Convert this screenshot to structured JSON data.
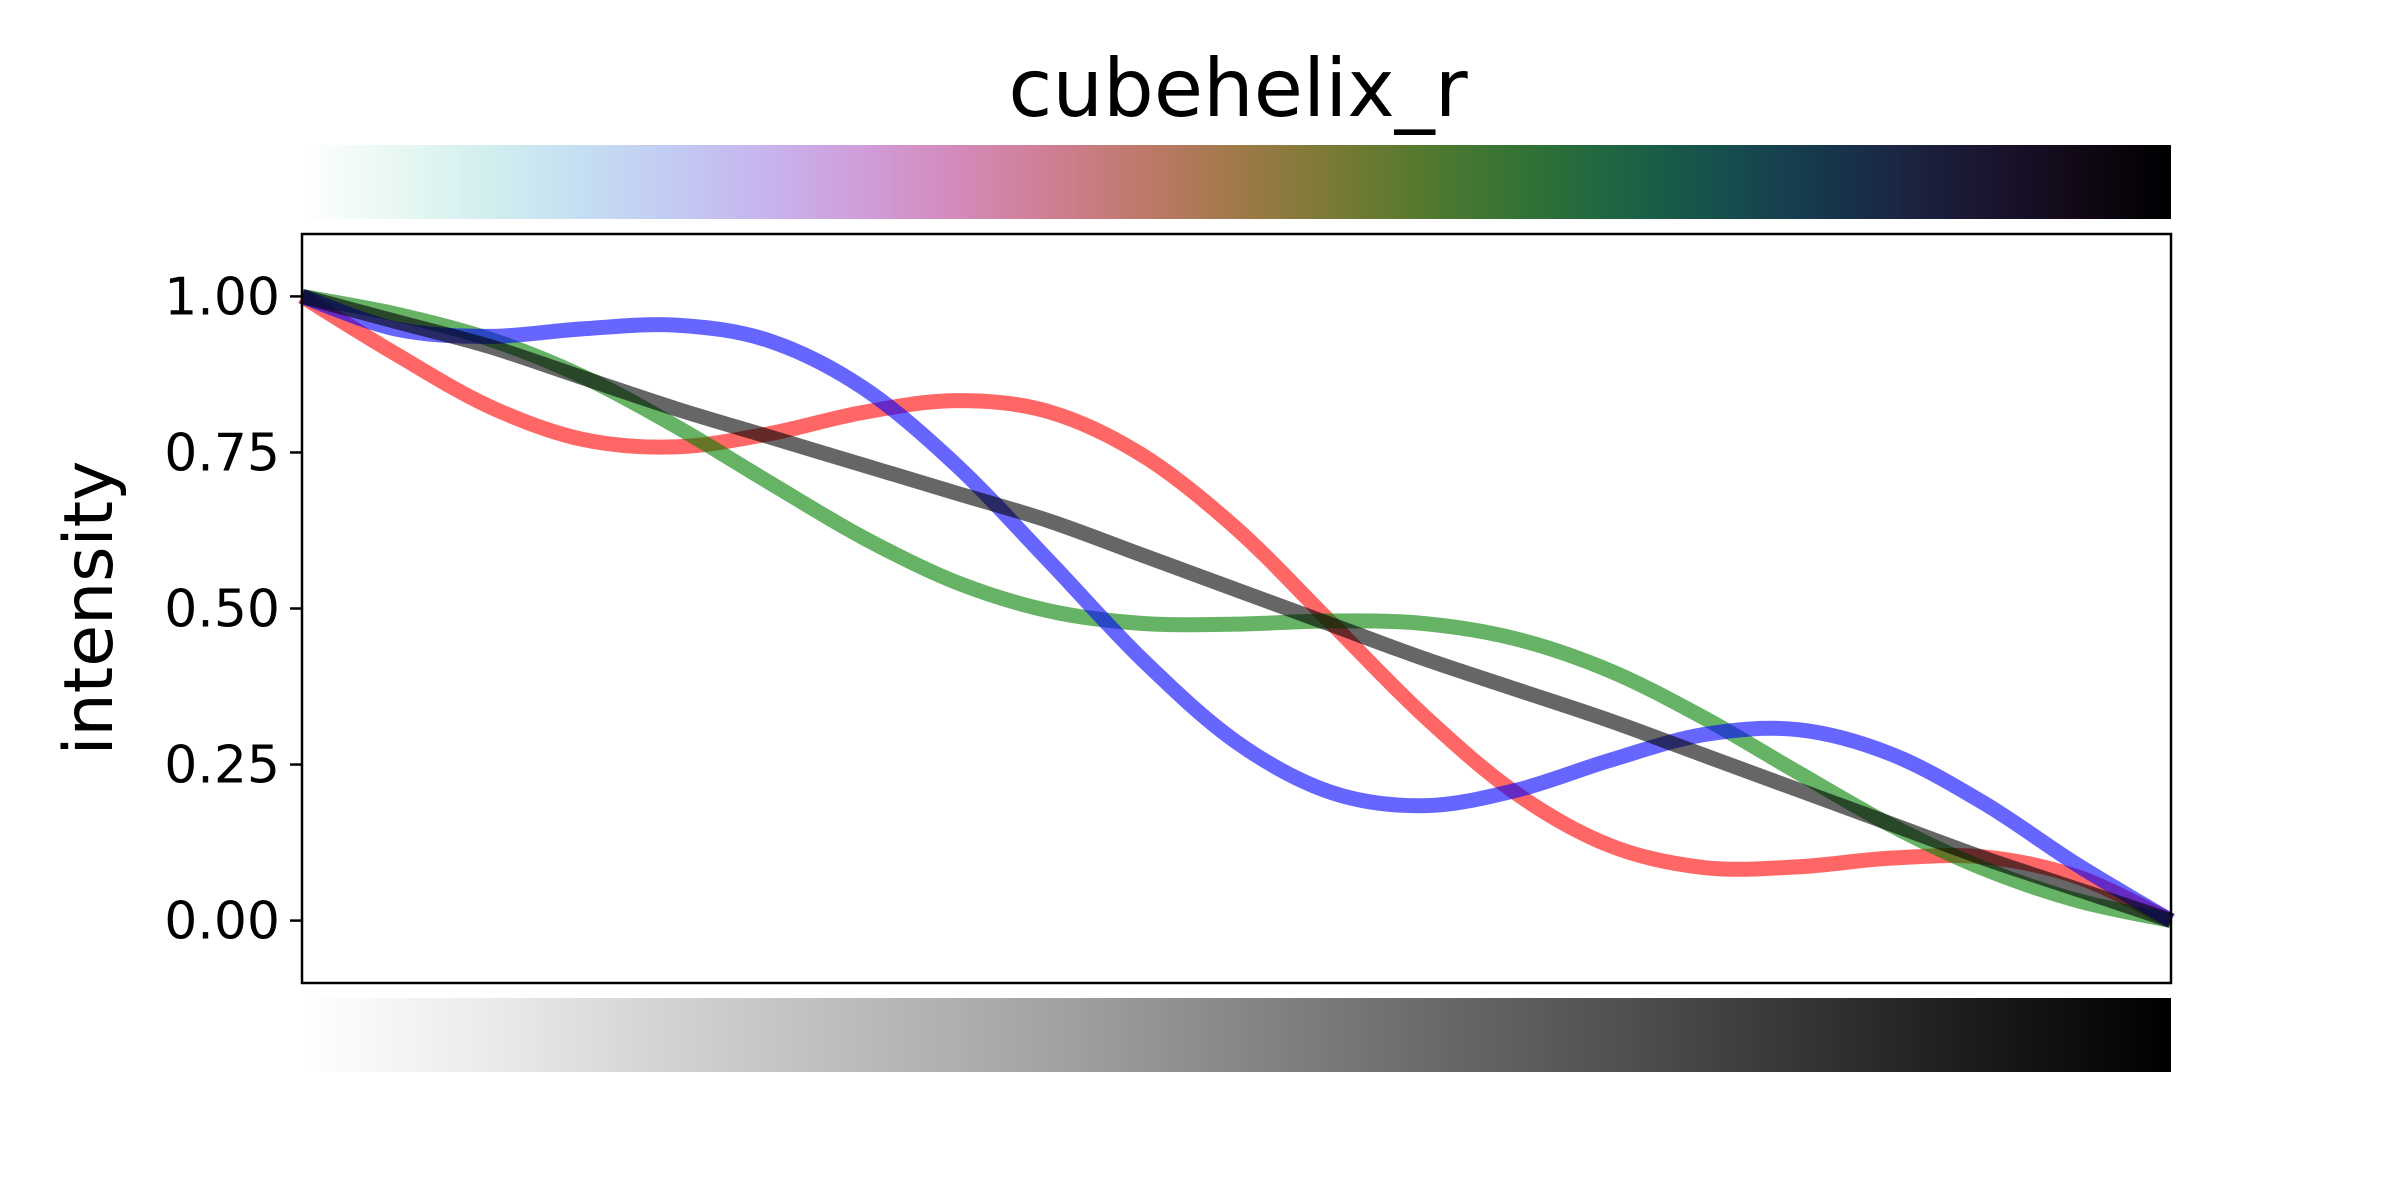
{
  "chart_data": {
    "type": "line",
    "title": "cubehelix_r",
    "xlabel": "",
    "ylabel": "intensity",
    "xlim": [
      0,
      1
    ],
    "ylim": [
      -0.1,
      1.1
    ],
    "x_ticks_shown": false,
    "yticks": [
      0.0,
      0.25,
      0.5,
      0.75,
      1.0
    ],
    "ytick_labels": [
      "0.00",
      "0.25",
      "0.50",
      "0.75",
      "1.00"
    ],
    "grid": false,
    "legend": "none",
    "x": [
      0,
      0.05,
      0.1,
      0.15,
      0.2,
      0.25,
      0.3,
      0.35,
      0.4,
      0.45,
      0.5,
      0.55,
      0.6,
      0.65,
      0.7,
      0.75,
      0.8,
      0.85,
      0.9,
      0.95,
      1.0
    ],
    "series": [
      {
        "color": "#ff0000",
        "values": [
          1.0,
          0.908,
          0.824,
          0.771,
          0.759,
          0.78,
          0.814,
          0.833,
          0.815,
          0.745,
          0.628,
          0.479,
          0.329,
          0.203,
          0.12,
          0.085,
          0.086,
          0.1,
          0.102,
          0.07,
          0.0
        ]
      },
      {
        "color": "#008000",
        "values": [
          1.0,
          0.972,
          0.932,
          0.872,
          0.792,
          0.702,
          0.614,
          0.542,
          0.496,
          0.476,
          0.475,
          0.48,
          0.476,
          0.451,
          0.4,
          0.325,
          0.238,
          0.153,
          0.083,
          0.032,
          0.0
        ]
      },
      {
        "color": "#0000ff",
        "values": [
          1.0,
          0.948,
          0.936,
          0.948,
          0.954,
          0.929,
          0.854,
          0.73,
          0.575,
          0.417,
          0.286,
          0.206,
          0.184,
          0.209,
          0.257,
          0.298,
          0.306,
          0.267,
          0.188,
          0.089,
          0.0
        ]
      },
      {
        "color": "#000000",
        "values": [
          1.0,
          0.96,
          0.92,
          0.87,
          0.82,
          0.775,
          0.73,
          0.685,
          0.64,
          0.585,
          0.53,
          0.475,
          0.42,
          0.37,
          0.32,
          0.265,
          0.21,
          0.155,
          0.1,
          0.05,
          0.0
        ]
      }
    ],
    "colorbars": [
      {
        "position": "top",
        "colormap": "cubehelix_r"
      },
      {
        "position": "bottom",
        "colormap": "grayscale lightness"
      }
    ]
  }
}
